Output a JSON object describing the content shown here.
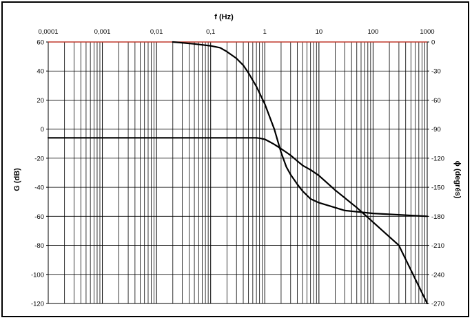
{
  "chart_data": {
    "type": "line",
    "title": "",
    "xlabel": "f (Hz)",
    "ylabel": "G (dB)",
    "y2label": "ϕ (degrés)",
    "x_scale": "log",
    "xlim": [
      0.0001,
      1000
    ],
    "ylim": [
      -120,
      60
    ],
    "y2lim": [
      -270,
      0
    ],
    "grid": true,
    "legend": "none",
    "x_ticks": [
      "0,0001",
      "0,001",
      "0,01",
      "0,1",
      "1",
      "10",
      "100",
      "1000"
    ],
    "y_ticks": [
      "60",
      "40",
      "20",
      "0",
      "-20",
      "-40",
      "-60",
      "-80",
      "-100",
      "-120"
    ],
    "y2_ticks": [
      "0",
      "-30",
      "-60",
      "-90",
      "-120",
      "-150",
      "-180",
      "-210",
      "-240",
      "-270"
    ],
    "series": [
      {
        "axis": "left",
        "x": [
          0.0001,
          0.001,
          0.01,
          0.1,
          0.3,
          0.5,
          0.7,
          0.8,
          1,
          1.2,
          1.5,
          2,
          2.5,
          3,
          4,
          5,
          7,
          10,
          20,
          50,
          100,
          300,
          1000
        ],
        "y": [
          -6,
          -6,
          -6,
          -6,
          -6,
          -6,
          -6,
          -6.2,
          -7,
          -8.5,
          -10.5,
          -13.5,
          -16,
          -18,
          -22,
          -25,
          -28,
          -32,
          -42,
          -54,
          -64,
          -80,
          -120
        ]
      },
      {
        "axis": "right",
        "x": [
          0.02,
          0.05,
          0.1,
          0.15,
          0.2,
          0.3,
          0.4,
          0.5,
          0.7,
          1,
          1.5,
          2,
          2.5,
          3,
          4,
          5,
          7,
          10,
          20,
          30,
          100,
          1000
        ],
        "y": [
          0,
          -2,
          -4,
          -6,
          -10,
          -17,
          -24,
          -32,
          -46,
          -64,
          -90,
          -114,
          -129,
          -137,
          -147,
          -154,
          -162,
          -166,
          -171,
          -174,
          -177,
          -180
        ]
      }
    ]
  }
}
